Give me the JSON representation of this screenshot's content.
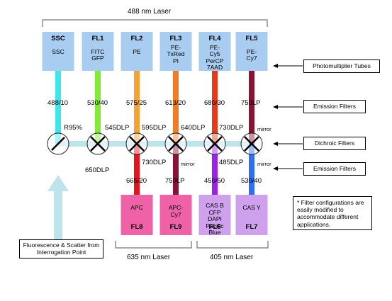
{
  "laser_488": "488 nm Laser",
  "laser_635": "635 nm Laser",
  "laser_405": "405 nm Laser",
  "colors": {
    "detector_blue": "#a8cdf1",
    "fl8_fl9_pink": "#f062a7",
    "fl6_fl7_lavender": "#cfa0ec",
    "beam": "#bfe3ea"
  },
  "detectors_top": [
    {
      "title": "SSC",
      "lines": [
        "SSC"
      ],
      "filter": "488/10",
      "color": "#3ee6ea"
    },
    {
      "title": "FL1",
      "lines": [
        "FITC",
        "GFP"
      ],
      "filter": "530/40",
      "color": "#82ea32"
    },
    {
      "title": "FL2",
      "lines": [
        "PE"
      ],
      "filter": "575/25",
      "color": "#f6a135"
    },
    {
      "title": "FL3",
      "lines": [
        "PE-",
        "TxRed",
        "PI"
      ],
      "filter": "613/20",
      "color": "#f07c23"
    },
    {
      "title": "FL4",
      "lines": [
        "PE-",
        "Cy5",
        "PerCP",
        "7AAD"
      ],
      "filter": "680/30",
      "color": "#e63a1c"
    },
    {
      "title": "FL5",
      "lines": [
        "PE-",
        "Cy7"
      ],
      "filter": "750LP",
      "color": "#8a1232"
    }
  ],
  "dichroics": [
    {
      "label": "R95%"
    },
    {
      "label": "545DLP"
    },
    {
      "label": "595DLP"
    },
    {
      "label": "640DLP"
    },
    {
      "label": "730DLP"
    },
    {
      "label": "mirror"
    }
  ],
  "dichroics_lower": [
    {
      "label": "730DLP"
    },
    {
      "label": "mirror"
    },
    {
      "label": "485DLP"
    },
    {
      "label": "mirror"
    }
  ],
  "label_650": "650DLP",
  "detectors_bottom": [
    {
      "title": "FL8",
      "lines": [
        "APC"
      ],
      "filter": "665/20",
      "color": "#e8131b"
    },
    {
      "title": "FL9",
      "lines": [
        "APC-",
        "Cy7"
      ],
      "filter": "750LP",
      "color": "#8a1232"
    },
    {
      "title": "FL6",
      "lines": [
        "CAS B",
        "CFP",
        "DAPI",
        "Pacific",
        "Blue"
      ],
      "filter": "450/50",
      "color": "#9b22e8"
    },
    {
      "title": "FL7",
      "lines": [
        "CAS Y"
      ],
      "filter": "530/40",
      "color": "#2f6ff0"
    }
  ],
  "callouts": {
    "pmt": "Photomultiplier Tubes",
    "emission_top": "Emission Filters",
    "dichroic": "Dichroic Filters",
    "emission_bottom": "Emission Filters",
    "source": "Fluorescence & Scatter from Interrogation Point"
  },
  "note": "* Filter configurations are easily modified to accommodate different applications."
}
